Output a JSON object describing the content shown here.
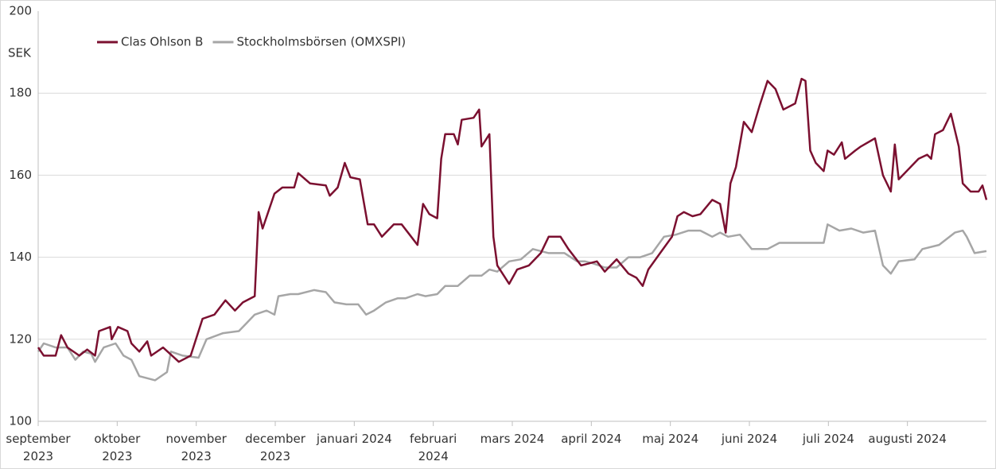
{
  "chart_data": {
    "type": "line",
    "y_label": "SEK",
    "xlim": [
      0,
      12
    ],
    "xticks": [
      {
        "value": 0,
        "label": "september\n2023"
      },
      {
        "value": 1,
        "label": "oktober\n2023"
      },
      {
        "value": 2,
        "label": "november\n2023"
      },
      {
        "value": 3,
        "label": "december\n2023"
      },
      {
        "value": 4,
        "label": "januari 2024"
      },
      {
        "value": 5,
        "label": "februari\n2024"
      },
      {
        "value": 6,
        "label": "mars 2024"
      },
      {
        "value": 7,
        "label": "april 2024"
      },
      {
        "value": 8,
        "label": "maj 2024"
      },
      {
        "value": 9,
        "label": "juni 2024"
      },
      {
        "value": 10,
        "label": "juli 2024"
      },
      {
        "value": 11,
        "label": "augusti 2024"
      }
    ],
    "ylim": [
      100,
      200
    ],
    "yticks": [
      100,
      120,
      140,
      160,
      180,
      200
    ],
    "grid": true,
    "legend": "top-left",
    "series": [
      {
        "name": "Clas Ohlson B",
        "color": "#7b1030",
        "x": [
          0,
          0.07,
          0.22,
          0.29,
          0.37,
          0.52,
          0.62,
          0.72,
          0.77,
          0.91,
          0.93,
          1.01,
          1.13,
          1.18,
          1.28,
          1.38,
          1.43,
          1.58,
          1.78,
          1.93,
          2.08,
          2.23,
          2.37,
          2.49,
          2.59,
          2.74,
          2.79,
          2.84,
          2.99,
          3.09,
          3.24,
          3.29,
          3.44,
          3.64,
          3.69,
          3.79,
          3.88,
          3.95,
          4.07,
          4.17,
          4.25,
          4.35,
          4.5,
          4.6,
          4.7,
          4.8,
          4.87,
          4.95,
          5.05,
          5.1,
          5.15,
          5.26,
          5.31,
          5.36,
          5.51,
          5.58,
          5.61,
          5.71,
          5.76,
          5.81,
          5.96,
          6.06,
          6.21,
          6.36,
          6.46,
          6.61,
          6.71,
          6.87,
          7.07,
          7.17,
          7.32,
          7.47,
          7.57,
          7.65,
          7.72,
          7.87,
          8.02,
          8.09,
          8.17,
          8.28,
          8.38,
          8.53,
          8.63,
          8.7,
          8.76,
          8.83,
          8.93,
          9.03,
          9.13,
          9.23,
          9.33,
          9.43,
          9.58,
          9.66,
          9.71,
          9.77,
          9.84,
          9.94,
          9.99,
          10.07,
          10.17,
          10.21,
          10.34,
          10.41,
          10.59,
          10.69,
          10.79,
          10.84,
          10.89,
          10.99,
          11.14,
          11.25,
          11.3,
          11.35,
          11.45,
          11.55,
          11.65,
          11.7,
          11.8,
          11.9,
          11.95,
          12
        ],
        "values": [
          118,
          116,
          116,
          121,
          118,
          116,
          117.5,
          116,
          122,
          123,
          120,
          123,
          122,
          119,
          117,
          119.5,
          116,
          118,
          114.5,
          116,
          125,
          126,
          129.5,
          127,
          129,
          130.5,
          151,
          147,
          155.5,
          157,
          157,
          160.5,
          158,
          157.5,
          155,
          157,
          163,
          159.5,
          159,
          148,
          148,
          145,
          148,
          148,
          145.5,
          143,
          153,
          150.5,
          149.5,
          164,
          170,
          170,
          167.5,
          173.5,
          174,
          176,
          167,
          170,
          145,
          138,
          133.5,
          137,
          138,
          141,
          145,
          145,
          142,
          138,
          139,
          136.5,
          139.5,
          136,
          135,
          133,
          137,
          141,
          145,
          150,
          151,
          150,
          150.5,
          154,
          153,
          146,
          158,
          162,
          173,
          170.5,
          177,
          183,
          181,
          176,
          177.5,
          183.5,
          183,
          166,
          163,
          161,
          166,
          165,
          168,
          164,
          166,
          167,
          169,
          160,
          156,
          167.5,
          159,
          161,
          164,
          165,
          164,
          170,
          171,
          175,
          167,
          158,
          156,
          156,
          157.5,
          154
        ]
      },
      {
        "name": "Stockholmsbörsen (OMXSPI)",
        "color": "#a6a6a6",
        "x": [
          0,
          0.07,
          0.22,
          0.37,
          0.47,
          0.57,
          0.67,
          0.72,
          0.83,
          0.98,
          1.08,
          1.18,
          1.28,
          1.38,
          1.48,
          1.63,
          1.68,
          1.83,
          2.03,
          2.13,
          2.34,
          2.54,
          2.64,
          2.74,
          2.89,
          2.99,
          3.04,
          3.19,
          3.29,
          3.49,
          3.64,
          3.75,
          3.9,
          4.05,
          4.15,
          4.25,
          4.4,
          4.55,
          4.65,
          4.8,
          4.9,
          5.05,
          5.15,
          5.31,
          5.46,
          5.61,
          5.71,
          5.81,
          5.96,
          6.11,
          6.26,
          6.46,
          6.66,
          6.82,
          6.92,
          7.02,
          7.17,
          7.32,
          7.47,
          7.62,
          7.77,
          7.92,
          8.07,
          8.23,
          8.38,
          8.53,
          8.63,
          8.73,
          8.88,
          9.03,
          9.23,
          9.38,
          9.58,
          9.79,
          9.94,
          9.99,
          10.14,
          10.29,
          10.44,
          10.59,
          10.69,
          10.79,
          10.89,
          11.09,
          11.19,
          11.4,
          11.6,
          11.7,
          11.75,
          11.85,
          12
        ],
        "values": [
          117,
          119,
          118,
          118,
          115,
          117,
          116.5,
          114.5,
          118,
          119,
          116,
          115,
          111,
          110.5,
          110,
          112,
          117,
          116,
          115.5,
          120,
          121.5,
          122,
          124,
          126,
          127,
          126,
          130.5,
          131,
          131,
          132,
          131.5,
          129,
          128.5,
          128.5,
          126,
          127,
          129,
          130,
          130,
          131,
          130.5,
          131,
          133,
          133,
          135.5,
          135.5,
          137,
          136.5,
          139,
          139.5,
          142,
          141,
          141,
          139,
          139,
          138.5,
          137.5,
          137.5,
          140,
          140,
          141,
          145,
          145.5,
          146.5,
          146.5,
          145,
          146,
          145,
          145.5,
          142,
          142,
          143.5,
          143.5,
          143.5,
          143.5,
          148,
          146.5,
          147,
          146,
          146.5,
          138,
          136,
          139,
          139.5,
          142,
          143,
          146,
          146.5,
          145,
          141,
          141.5
        ]
      }
    ]
  }
}
